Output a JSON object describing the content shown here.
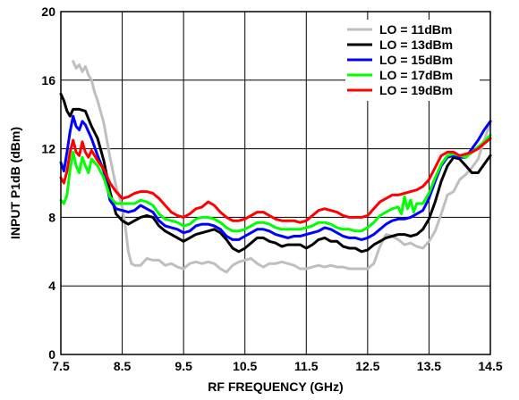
{
  "chart_data": {
    "type": "line",
    "title": "",
    "xlabel": "RF FREQUENCY (GHz)",
    "ylabel": "INPUT P1dB (dBm)",
    "xlim": [
      7.5,
      14.5
    ],
    "ylim": [
      0,
      20
    ],
    "xticks": [
      7.5,
      8.5,
      9.5,
      10.5,
      11.5,
      12.5,
      13.5,
      14.5
    ],
    "xtick_labels": [
      "7.5",
      "8.5",
      "9.5",
      "10.5",
      "11.5",
      "12.5",
      "13.5",
      "14.5"
    ],
    "yticks": [
      0,
      4,
      8,
      12,
      16,
      20
    ],
    "ytick_labels": [
      "0",
      "4",
      "8",
      "12",
      "16",
      "20"
    ],
    "grid": true,
    "legend_position": "top-right",
    "series": [
      {
        "name": "LO = 11dBm",
        "color": "#bfbfbf",
        "x": [
          7.7,
          7.75,
          7.8,
          7.85,
          7.9,
          7.95,
          8.0,
          8.05,
          8.1,
          8.2,
          8.3,
          8.4,
          8.5,
          8.55,
          8.6,
          8.65,
          8.7,
          8.8,
          8.9,
          9.0,
          9.1,
          9.2,
          9.3,
          9.4,
          9.5,
          9.6,
          9.7,
          9.8,
          9.9,
          10.0,
          10.1,
          10.2,
          10.3,
          10.4,
          10.5,
          10.6,
          10.7,
          10.8,
          10.9,
          11.0,
          11.1,
          11.2,
          11.3,
          11.4,
          11.5,
          11.6,
          11.7,
          11.8,
          11.9,
          12.0,
          12.1,
          12.2,
          12.3,
          12.4,
          12.5,
          12.6,
          12.7,
          12.8,
          12.9,
          13.0,
          13.1,
          13.2,
          13.3,
          13.4,
          13.5,
          13.6,
          13.7,
          13.8,
          13.9,
          14.0,
          14.1,
          14.2,
          14.3,
          14.4,
          14.5
        ],
        "y": [
          17.1,
          16.7,
          16.9,
          16.5,
          16.8,
          16.3,
          16.0,
          15.3,
          14.8,
          13.5,
          11.5,
          9.8,
          8.6,
          7.5,
          6.0,
          5.3,
          5.2,
          5.2,
          5.6,
          5.5,
          5.5,
          5.2,
          5.3,
          5.1,
          5.0,
          5.3,
          5.4,
          5.3,
          5.4,
          5.3,
          5.0,
          4.8,
          5.2,
          5.4,
          5.5,
          5.6,
          5.3,
          5.1,
          5.3,
          5.3,
          5.4,
          5.3,
          5.2,
          5.0,
          5.0,
          5.1,
          5.2,
          5.1,
          5.2,
          5.1,
          5.1,
          5.0,
          5.0,
          5.0,
          5.0,
          5.3,
          6.3,
          7.0,
          6.9,
          6.7,
          6.4,
          6.5,
          6.3,
          6.2,
          6.6,
          7.2,
          8.2,
          9.3,
          9.5,
          10.2,
          10.5,
          10.9,
          11.4,
          12.5,
          13.5
        ]
      },
      {
        "name": "LO = 13dBm",
        "color": "#000000",
        "x": [
          7.5,
          7.55,
          7.6,
          7.65,
          7.7,
          7.8,
          7.9,
          8.0,
          8.1,
          8.2,
          8.3,
          8.4,
          8.5,
          8.6,
          8.7,
          8.8,
          8.9,
          9.0,
          9.1,
          9.2,
          9.3,
          9.4,
          9.5,
          9.6,
          9.7,
          9.8,
          9.9,
          10.0,
          10.1,
          10.2,
          10.3,
          10.4,
          10.5,
          10.6,
          10.7,
          10.8,
          10.9,
          11.0,
          11.1,
          11.2,
          11.3,
          11.4,
          11.5,
          11.6,
          11.7,
          11.8,
          11.9,
          12.0,
          12.1,
          12.2,
          12.3,
          12.4,
          12.5,
          12.6,
          12.7,
          12.8,
          12.9,
          13.0,
          13.1,
          13.2,
          13.3,
          13.4,
          13.5,
          13.6,
          13.7,
          13.8,
          13.9,
          14.0,
          14.1,
          14.2,
          14.3,
          14.4,
          14.5
        ],
        "y": [
          15.2,
          14.8,
          14.2,
          13.9,
          14.3,
          14.3,
          14.2,
          13.3,
          12.6,
          11.3,
          9.5,
          8.2,
          7.8,
          7.6,
          7.8,
          8.0,
          8.1,
          8.0,
          7.5,
          7.2,
          7.0,
          6.8,
          6.6,
          6.8,
          7.0,
          7.1,
          7.2,
          7.3,
          7.1,
          6.7,
          6.2,
          6.0,
          6.2,
          6.5,
          6.8,
          6.8,
          6.6,
          6.5,
          6.3,
          6.4,
          6.4,
          6.4,
          6.2,
          6.4,
          6.7,
          6.8,
          6.6,
          6.6,
          6.3,
          6.2,
          6.2,
          6.0,
          6.1,
          6.4,
          6.6,
          6.8,
          6.9,
          7.0,
          7.0,
          6.9,
          7.0,
          7.3,
          7.9,
          8.9,
          10.1,
          11.0,
          11.5,
          11.4,
          11.0,
          10.6,
          10.6,
          11.1,
          11.6
        ]
      },
      {
        "name": "LO = 15dBm",
        "color": "#0000ff",
        "x": [
          7.5,
          7.55,
          7.6,
          7.65,
          7.7,
          7.75,
          7.8,
          7.85,
          7.9,
          8.0,
          8.1,
          8.2,
          8.3,
          8.4,
          8.5,
          8.6,
          8.7,
          8.8,
          8.9,
          9.0,
          9.1,
          9.2,
          9.3,
          9.4,
          9.5,
          9.6,
          9.7,
          9.8,
          9.9,
          10.0,
          10.1,
          10.2,
          10.3,
          10.4,
          10.5,
          10.6,
          10.7,
          10.8,
          10.9,
          11.0,
          11.1,
          11.2,
          11.3,
          11.4,
          11.5,
          11.6,
          11.7,
          11.8,
          11.9,
          12.0,
          12.1,
          12.2,
          12.3,
          12.4,
          12.5,
          12.6,
          12.7,
          12.8,
          12.9,
          13.0,
          13.1,
          13.2,
          13.3,
          13.4,
          13.5,
          13.6,
          13.7,
          13.8,
          13.9,
          14.0,
          14.1,
          14.2,
          14.3,
          14.4,
          14.5
        ],
        "y": [
          11.2,
          10.7,
          11.8,
          13.0,
          13.9,
          13.3,
          13.1,
          13.6,
          13.4,
          12.6,
          11.6,
          10.7,
          9.0,
          8.5,
          8.4,
          8.3,
          8.4,
          8.7,
          8.5,
          8.3,
          7.8,
          7.5,
          7.4,
          7.3,
          7.1,
          7.2,
          7.5,
          7.6,
          7.6,
          7.5,
          7.3,
          6.9,
          6.7,
          6.7,
          6.9,
          7.1,
          7.3,
          7.3,
          7.2,
          7.0,
          6.9,
          6.8,
          6.9,
          6.9,
          7.0,
          7.1,
          7.2,
          7.4,
          7.3,
          7.1,
          6.9,
          6.8,
          6.8,
          6.7,
          6.8,
          7.0,
          7.3,
          7.6,
          7.8,
          7.9,
          7.9,
          8.0,
          8.2,
          8.4,
          9.1,
          10.1,
          11.0,
          11.5,
          11.6,
          11.5,
          11.5,
          12.0,
          12.5,
          13.1,
          13.6
        ]
      },
      {
        "name": "LO = 17dBm",
        "color": "#00ff00",
        "x": [
          7.5,
          7.55,
          7.6,
          7.65,
          7.7,
          7.75,
          7.8,
          7.85,
          7.9,
          7.95,
          8.0,
          8.1,
          8.2,
          8.3,
          8.4,
          8.5,
          8.6,
          8.7,
          8.8,
          8.9,
          9.0,
          9.1,
          9.2,
          9.3,
          9.4,
          9.5,
          9.6,
          9.7,
          9.8,
          9.9,
          10.0,
          10.1,
          10.2,
          10.3,
          10.4,
          10.5,
          10.6,
          10.7,
          10.8,
          10.9,
          11.0,
          11.1,
          11.2,
          11.3,
          11.4,
          11.5,
          11.6,
          11.7,
          11.8,
          11.9,
          12.0,
          12.1,
          12.2,
          12.3,
          12.4,
          12.5,
          12.6,
          12.7,
          12.8,
          12.9,
          13.0,
          13.05,
          13.1,
          13.15,
          13.2,
          13.25,
          13.3,
          13.4,
          13.5,
          13.6,
          13.7,
          13.8,
          13.9,
          14.0,
          14.1,
          14.2,
          14.3,
          14.4,
          14.5
        ],
        "y": [
          9.0,
          8.8,
          9.3,
          10.8,
          11.8,
          11.0,
          10.6,
          11.5,
          11.0,
          10.6,
          11.4,
          11.0,
          10.3,
          9.2,
          8.8,
          8.8,
          8.8,
          8.8,
          9.0,
          8.9,
          8.7,
          8.2,
          7.9,
          7.8,
          7.7,
          7.5,
          7.6,
          7.9,
          8.0,
          8.0,
          7.9,
          7.7,
          7.4,
          7.2,
          7.2,
          7.3,
          7.5,
          7.7,
          7.7,
          7.6,
          7.4,
          7.3,
          7.3,
          7.3,
          7.3,
          7.4,
          7.5,
          7.7,
          7.7,
          7.6,
          7.4,
          7.3,
          7.3,
          7.2,
          7.2,
          7.4,
          7.7,
          8.1,
          8.3,
          8.5,
          8.6,
          8.2,
          9.2,
          8.5,
          9.0,
          8.3,
          8.8,
          8.8,
          9.4,
          10.3,
          11.1,
          11.6,
          11.7,
          11.6,
          11.5,
          11.8,
          12.1,
          12.4,
          12.8
        ]
      },
      {
        "name": "LO = 19dBm",
        "color": "#ff0000",
        "x": [
          7.5,
          7.55,
          7.6,
          7.65,
          7.7,
          7.75,
          7.8,
          7.85,
          7.9,
          7.95,
          8.0,
          8.1,
          8.2,
          8.3,
          8.4,
          8.5,
          8.6,
          8.7,
          8.8,
          8.9,
          9.0,
          9.1,
          9.2,
          9.3,
          9.4,
          9.5,
          9.6,
          9.7,
          9.8,
          9.9,
          10.0,
          10.1,
          10.2,
          10.3,
          10.4,
          10.5,
          10.6,
          10.7,
          10.8,
          10.9,
          11.0,
          11.1,
          11.2,
          11.3,
          11.4,
          11.5,
          11.6,
          11.7,
          11.8,
          11.9,
          12.0,
          12.1,
          12.2,
          12.3,
          12.4,
          12.5,
          12.6,
          12.7,
          12.8,
          12.9,
          13.0,
          13.1,
          13.2,
          13.3,
          13.4,
          13.5,
          13.6,
          13.7,
          13.8,
          13.9,
          14.0,
          14.1,
          14.2,
          14.3,
          14.4,
          14.5
        ],
        "y": [
          10.3,
          10.0,
          10.7,
          11.8,
          12.5,
          11.8,
          11.6,
          12.4,
          11.8,
          11.5,
          11.9,
          11.3,
          10.8,
          10.0,
          9.5,
          9.1,
          9.2,
          9.4,
          9.5,
          9.5,
          9.4,
          9.1,
          8.7,
          8.3,
          8.1,
          8.0,
          8.2,
          8.5,
          8.6,
          8.9,
          8.7,
          8.3,
          8.0,
          7.8,
          7.8,
          7.9,
          8.1,
          8.3,
          8.3,
          8.1,
          7.9,
          7.8,
          7.8,
          7.8,
          7.7,
          7.8,
          8.1,
          8.4,
          8.5,
          8.4,
          8.3,
          8.1,
          8.0,
          8.0,
          8.0,
          8.1,
          8.5,
          8.9,
          9.1,
          9.3,
          9.3,
          9.4,
          9.5,
          9.6,
          9.8,
          10.2,
          10.9,
          11.6,
          11.8,
          11.8,
          11.6,
          11.7,
          11.8,
          12.0,
          12.3,
          12.6
        ]
      }
    ]
  }
}
